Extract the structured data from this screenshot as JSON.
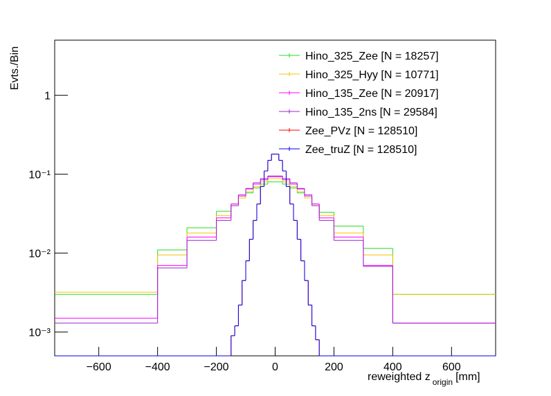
{
  "chart_data": {
    "type": "histogram",
    "ylabel": "Evts./Bin",
    "xlabel": [
      "reweighted z",
      "origin",
      "[mm]"
    ],
    "xlim": [
      -750,
      750
    ],
    "xticks": [
      -600,
      -400,
      -200,
      0,
      200,
      400,
      600
    ],
    "ylim": [
      0.0005,
      5
    ],
    "log_y": true,
    "yticks": [
      {
        "value": 0.001,
        "label": "10⁻³"
      },
      {
        "value": 0.01,
        "label": "10⁻²"
      },
      {
        "value": 0.1,
        "label": "10⁻¹"
      },
      1
    ],
    "legend": "top-right",
    "series": [
      {
        "name": "Hino_325_Zee [N = 18257]",
        "color": "#22dd22",
        "bins": [
          -750,
          -400,
          -300,
          -200,
          -150,
          -125,
          -100,
          -75,
          -50,
          -25,
          0,
          25,
          50,
          75,
          100,
          125,
          150,
          200,
          300,
          400,
          750
        ],
        "values": [
          0.003,
          0.011,
          0.021,
          0.034,
          0.042,
          0.05,
          0.058,
          0.067,
          0.075,
          0.08,
          0.08,
          0.075,
          0.067,
          0.058,
          0.05,
          0.042,
          0.033,
          0.022,
          0.0115,
          0.003
        ]
      },
      {
        "name": "Hino_325_Hyy [N = 10771]",
        "color": "#f5c400",
        "bins": [
          -750,
          -400,
          -300,
          -200,
          -150,
          -125,
          -100,
          -75,
          -50,
          -25,
          0,
          25,
          50,
          75,
          100,
          125,
          150,
          200,
          300,
          400,
          750
        ],
        "values": [
          0.0032,
          0.0095,
          0.018,
          0.03,
          0.04,
          0.05,
          0.06,
          0.07,
          0.08,
          0.088,
          0.088,
          0.08,
          0.07,
          0.06,
          0.05,
          0.04,
          0.03,
          0.018,
          0.0095,
          0.003
        ]
      },
      {
        "name": "Hino_135_Zee [N = 20917]",
        "color": "#ff00ff",
        "bins": [
          -750,
          -400,
          -300,
          -200,
          -150,
          -125,
          -100,
          -75,
          -50,
          -25,
          0,
          25,
          50,
          75,
          100,
          125,
          150,
          200,
          300,
          400,
          750
        ],
        "values": [
          0.0015,
          0.007,
          0.016,
          0.028,
          0.042,
          0.055,
          0.065,
          0.075,
          0.085,
          0.093,
          0.093,
          0.085,
          0.075,
          0.065,
          0.055,
          0.042,
          0.028,
          0.016,
          0.007,
          0.0013
        ]
      },
      {
        "name": "Hino_135_2ns [N = 29584]",
        "color": "#a020d0",
        "bins": [
          -750,
          -400,
          -300,
          -200,
          -150,
          -125,
          -100,
          -75,
          -50,
          -25,
          0,
          25,
          50,
          75,
          100,
          125,
          150,
          200,
          300,
          400,
          750
        ],
        "values": [
          0.0013,
          0.0065,
          0.0145,
          0.026,
          0.04,
          0.053,
          0.066,
          0.078,
          0.088,
          0.095,
          0.095,
          0.088,
          0.078,
          0.066,
          0.053,
          0.04,
          0.026,
          0.0145,
          0.0068,
          0.0013
        ]
      },
      {
        "name": "Zee_PVz [N = 128510]",
        "color": "#ff0000",
        "bins": [
          -750,
          -150,
          -137.5,
          -125,
          -112.5,
          -100,
          -87.5,
          -75,
          -62.5,
          -50,
          -37.5,
          -25,
          -12.5,
          0,
          12.5,
          25,
          37.5,
          50,
          62.5,
          75,
          87.5,
          100,
          112.5,
          125,
          137.5,
          150,
          750
        ],
        "values": [
          0,
          0.0009,
          0.0012,
          0.0022,
          0.0045,
          0.008,
          0.015,
          0.026,
          0.042,
          0.07,
          0.11,
          0.15,
          0.18,
          0.18,
          0.15,
          0.11,
          0.07,
          0.042,
          0.026,
          0.015,
          0.008,
          0.0045,
          0.0022,
          0.0012,
          0.0008,
          0
        ]
      },
      {
        "name": "Zee_truZ [N = 128510]",
        "color": "#0000ee",
        "bins": [
          -750,
          -150,
          -137.5,
          -125,
          -112.5,
          -100,
          -87.5,
          -75,
          -62.5,
          -50,
          -37.5,
          -25,
          -12.5,
          0,
          12.5,
          25,
          37.5,
          50,
          62.5,
          75,
          87.5,
          100,
          112.5,
          125,
          137.5,
          150,
          750
        ],
        "values": [
          0,
          0.0009,
          0.0012,
          0.0022,
          0.0045,
          0.008,
          0.015,
          0.026,
          0.042,
          0.07,
          0.11,
          0.15,
          0.18,
          0.18,
          0.15,
          0.11,
          0.07,
          0.042,
          0.026,
          0.015,
          0.008,
          0.0045,
          0.0022,
          0.0012,
          0.0008,
          0
        ]
      }
    ]
  }
}
